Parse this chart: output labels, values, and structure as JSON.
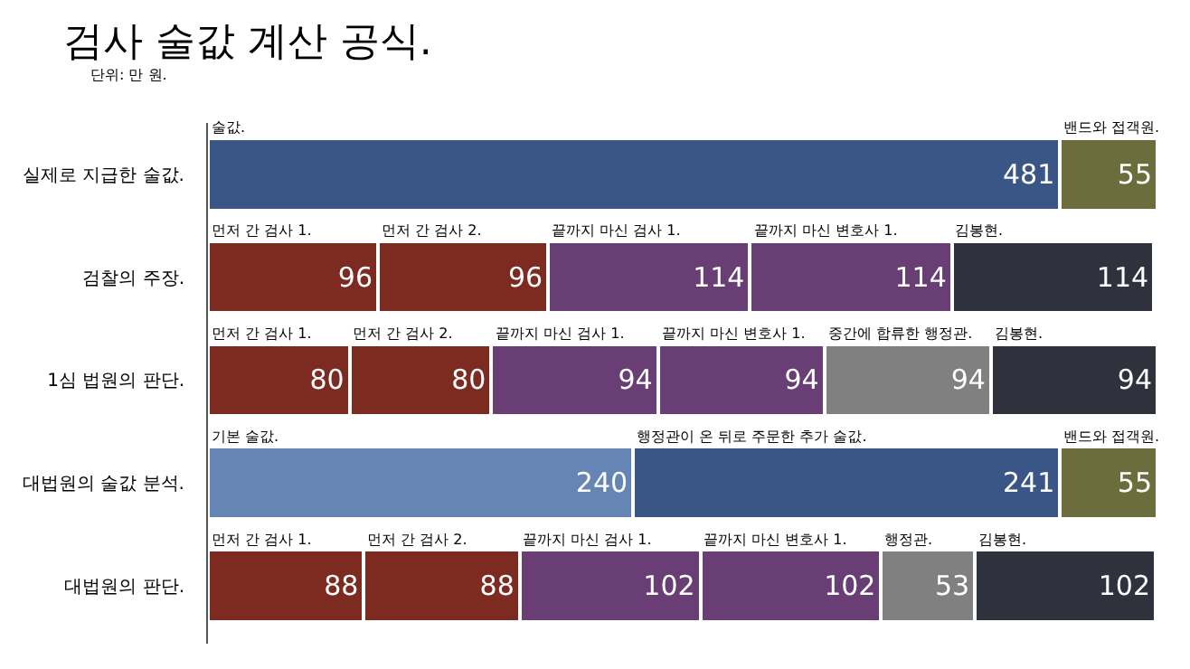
{
  "chart_data": {
    "type": "bar",
    "orientation": "horizontal",
    "stacked": true,
    "title": "검사 술값 계산 공식.",
    "subtitle": "단위: 만 원.",
    "categories": [
      "실제로 지급한 술값.",
      "검찰의 주장.",
      "1심 법원의 판단.",
      "대법원의 술값 분석.",
      "대법원의 판단."
    ],
    "series": [
      {
        "values": [
          481,
          96,
          80,
          240,
          88
        ],
        "colors": [
          "#3a5686",
          "#7d2a20",
          "#7d2a20",
          "#6585b4",
          "#7d2a20"
        ]
      },
      {
        "values": [
          55,
          96,
          80,
          241,
          88
        ],
        "colors": [
          "#6b6e3c",
          "#7d2a20",
          "#7d2a20",
          "#3a5686",
          "#7d2a20"
        ]
      },
      {
        "values": [
          null,
          114,
          94,
          55,
          102
        ],
        "colors": [
          null,
          "#683e75",
          "#683e75",
          "#6b6e3c",
          "#683e75"
        ]
      },
      {
        "values": [
          null,
          114,
          94,
          null,
          102
        ],
        "colors": [
          null,
          "#683e75",
          "#683e75",
          null,
          "#683e75"
        ]
      },
      {
        "values": [
          null,
          114,
          94,
          null,
          53
        ],
        "colors": [
          null,
          "#2f323d",
          "#7f807f",
          null,
          "#7f807f"
        ]
      },
      {
        "values": [
          null,
          null,
          94,
          null,
          102
        ],
        "colors": [
          null,
          null,
          "#2f323d",
          null,
          "#2f323d"
        ]
      }
    ],
    "xlim": [
      0,
      536
    ],
    "tick_labels": "y",
    "data_labels": true,
    "annotations": [
      {
        "text": "술값.",
        "x": 0,
        "y": "실제로 지급한 술값."
      },
      {
        "text": "밴드와 접객원.",
        "x": 481,
        "y": "실제로 지급한 술값."
      },
      {
        "text": "먼저 간 검사 1.",
        "x": 0,
        "y": "검찰의 주장."
      },
      {
        "text": "먼저 간 검사 2.",
        "x": 96,
        "y": "검찰의 주장."
      },
      {
        "text": "끝까지 마신 검사 1.",
        "x": 192,
        "y": "검찰의 주장."
      },
      {
        "text": "끝까지 마신 변호사 1.",
        "x": 306,
        "y": "검찰의 주장."
      },
      {
        "text": "김봉현.",
        "x": 420,
        "y": "검찰의 주장."
      },
      {
        "text": "먼저 간 검사 1.",
        "x": 0,
        "y": "1심 법원의 판단."
      },
      {
        "text": "먼저 간 검사 2.",
        "x": 80,
        "y": "1심 법원의 판단."
      },
      {
        "text": "끝까지 마신 검사 1.",
        "x": 160,
        "y": "1심 법원의 판단."
      },
      {
        "text": "끝까지 마신 변호사 1.",
        "x": 254,
        "y": "1심 법원의 판단."
      },
      {
        "text": "중간에 합류한 행정관.",
        "x": 348,
        "y": "1심 법원의 판단."
      },
      {
        "text": "김봉현.",
        "x": 442,
        "y": "1심 법원의 판단."
      },
      {
        "text": "기본 술값.",
        "x": 0,
        "y": "대법원의 술값 분석."
      },
      {
        "text": "행정관이 온 뒤로 주문한 추가 술값.",
        "x": 240,
        "y": "대법원의 술값 분석."
      },
      {
        "text": "밴드와 접객원.",
        "x": 481,
        "y": "대법원의 술값 분석."
      },
      {
        "text": "먼저 간 검사 1.",
        "x": 0,
        "y": "대법원의 판단."
      },
      {
        "text": "먼저 간 검사 2.",
        "x": 88,
        "y": "대법원의 판단."
      },
      {
        "text": "끝까지 마신 검사 1.",
        "x": 176,
        "y": "대법원의 판단."
      },
      {
        "text": "끝까지 마신 변호사 1.",
        "x": 278,
        "y": "대법원의 판단."
      },
      {
        "text": "행정관.",
        "x": 380,
        "y": "대법원의 판단."
      },
      {
        "text": "김봉현.",
        "x": 433,
        "y": "대법원의 판단."
      }
    ]
  }
}
